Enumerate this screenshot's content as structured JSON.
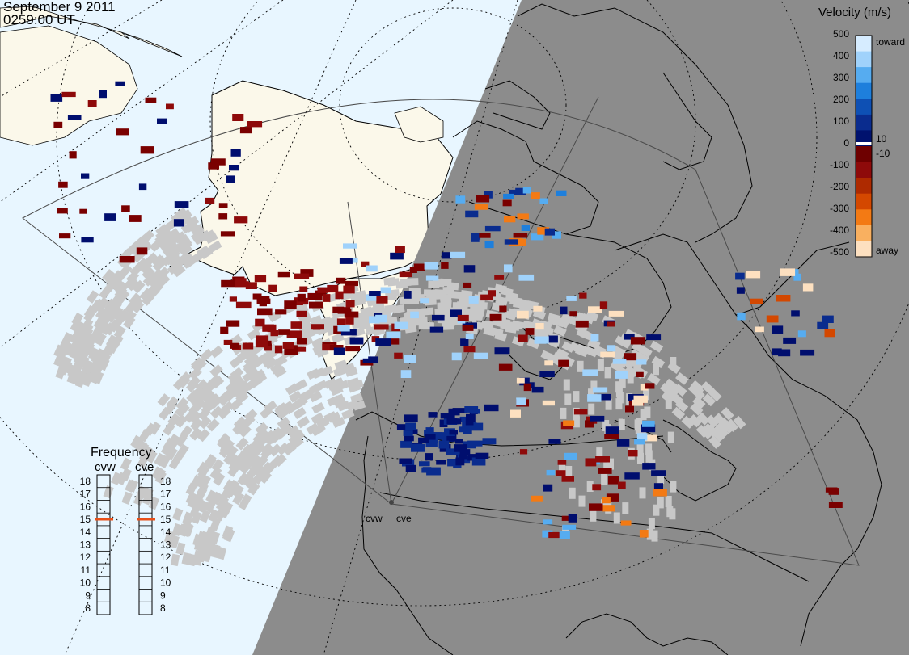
{
  "header": {
    "date": "September  9 2011",
    "time": "0259:00 UT"
  },
  "radars": [
    {
      "code": "cvw"
    },
    {
      "code": "cve"
    }
  ],
  "velocity_scale": {
    "title": "Velocity (m/s)",
    "ticks": [
      "500",
      "400",
      "300",
      "200",
      "100",
      "10",
      "0",
      "-10",
      "-100",
      "-200",
      "-300",
      "-400",
      "-500"
    ],
    "toward_label": "toward",
    "away_label": "away",
    "colors": [
      "#d6ecff",
      "#a0d2fb",
      "#56acf0",
      "#1e7fdc",
      "#0e50b4",
      "#0a2c8e",
      "#00126e",
      "#6e0000",
      "#8e0a0a",
      "#ae2a00",
      "#d44800",
      "#f37a14",
      "#f9b060",
      "#fde0c0"
    ]
  },
  "frequency": {
    "title": "Frequency",
    "left_label": "cvw",
    "right_label": "cve",
    "ticks": [
      "18",
      "17",
      "16",
      "15",
      "14",
      "13",
      "12",
      "11",
      "10",
      "9",
      "8"
    ],
    "cvw_mhz": 15,
    "cve_mhz": 15,
    "marker_color": "#e8501a"
  },
  "colors": {
    "ocean_day": "#e8f6ff",
    "land_day": "#fbf8ea",
    "night": "#8c8c8c",
    "ground_scatter": "#c8c8c8"
  }
}
